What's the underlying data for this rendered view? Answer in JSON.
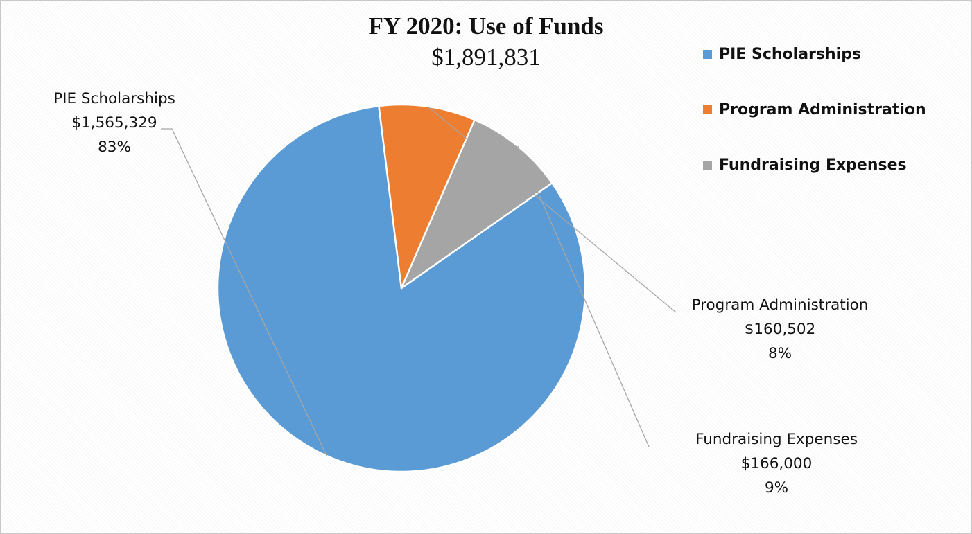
{
  "chart_data": {
    "type": "pie",
    "title": "FY 2020: Use of Funds",
    "subtitle": "$1,891,831",
    "legend_position": "right",
    "slices": [
      {
        "name": "PIE Scholarships",
        "value": 1565329,
        "value_label": "$1,565,329",
        "percent_label": "83%",
        "color": "#5B9BD5"
      },
      {
        "name": "Program Administration",
        "value": 160502,
        "value_label": "$160,502",
        "percent_label": "8%",
        "color": "#ED7D31"
      },
      {
        "name": "Fundraising Expenses",
        "value": 166000,
        "value_label": "$166,000",
        "percent_label": "9%",
        "color": "#A5A5A5"
      }
    ]
  }
}
